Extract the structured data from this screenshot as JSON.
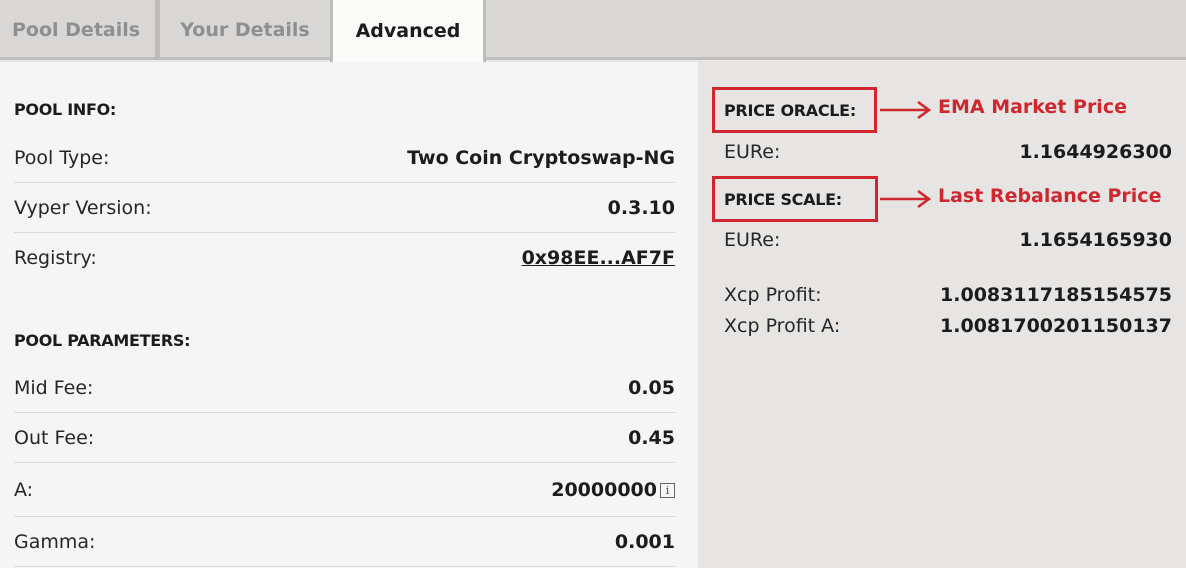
{
  "tabs": [
    {
      "label": "Pool Details"
    },
    {
      "label": "Your Details"
    },
    {
      "label": "Advanced"
    }
  ],
  "pool_info": {
    "title": "POOL INFO:",
    "rows": [
      {
        "label": "Pool Type:",
        "value": "Two Coin Cryptoswap-NG"
      },
      {
        "label": "Vyper Version:",
        "value": "0.3.10"
      },
      {
        "label": "Registry:",
        "value": "0x98EE...AF7F"
      }
    ]
  },
  "pool_parameters": {
    "title": "POOL PARAMETERS:",
    "rows": [
      {
        "label": "Mid Fee:",
        "value": "0.05"
      },
      {
        "label": "Out Fee:",
        "value": "0.45"
      },
      {
        "label": "A:",
        "value": "20000000"
      },
      {
        "label": "Gamma:",
        "value": "0.001"
      }
    ]
  },
  "price_oracle": {
    "title": "PRICE ORACLE:",
    "annotation": "EMA Market Price",
    "label": "EURe:",
    "value": "1.1644926300"
  },
  "price_scale": {
    "title": "PRICE SCALE:",
    "annotation": "Last Rebalance Price",
    "label": "EURe:",
    "value": "1.1654165930"
  },
  "xcp": [
    {
      "label": "Xcp Profit:",
      "value": "1.0083117185154575"
    },
    {
      "label": "Xcp Profit A:",
      "value": "1.0081700201150137"
    }
  ],
  "info_icon_glyph": "i",
  "colors": {
    "annotation_red": "#d0262d",
    "active_tab_bg": "#fafaf9",
    "left_panel_bg": "#f5f5f5",
    "right_panel_bg": "#e6e5e3"
  }
}
